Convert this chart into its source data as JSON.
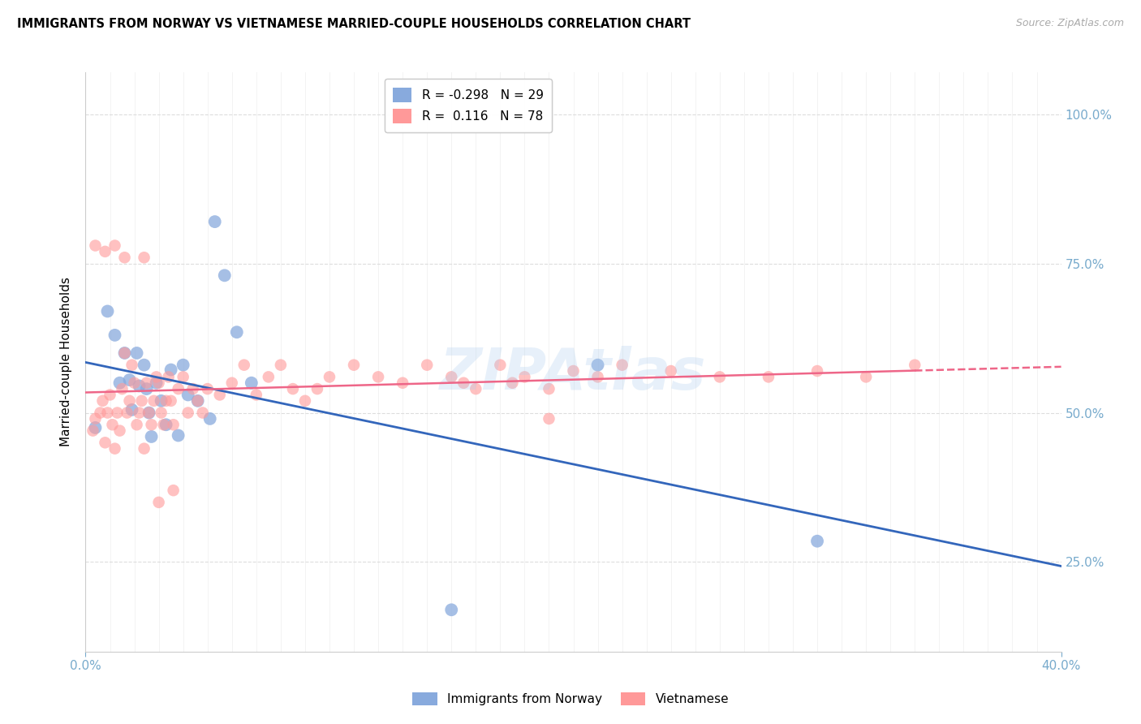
{
  "title": "IMMIGRANTS FROM NORWAY VS VIETNAMESE MARRIED-COUPLE HOUSEHOLDS CORRELATION CHART",
  "source": "Source: ZipAtlas.com",
  "ylabel": "Married-couple Households",
  "norway_R": -0.298,
  "norway_N": 29,
  "vietnamese_R": 0.116,
  "vietnamese_N": 78,
  "norway_color": "#88AADD",
  "vietnamese_color": "#FF9999",
  "norway_line_color": "#3366BB",
  "vietnamese_line_color": "#EE6688",
  "background_color": "#FFFFFF",
  "grid_color": "#DDDDDD",
  "axis_label_color": "#77AACC",
  "watermark_text": "ZIPAtlas",
  "xlim": [
    0.0,
    0.4
  ],
  "ylim": [
    0.1,
    1.07
  ],
  "x_minor_ticks": [
    0.01,
    0.02,
    0.03,
    0.04,
    0.05,
    0.06,
    0.07,
    0.08,
    0.09,
    0.1,
    0.11,
    0.12,
    0.13,
    0.14,
    0.15,
    0.16,
    0.17,
    0.18,
    0.19,
    0.2,
    0.21,
    0.22,
    0.23,
    0.24,
    0.25,
    0.26,
    0.27,
    0.28,
    0.29,
    0.3,
    0.31,
    0.32,
    0.33,
    0.34,
    0.35,
    0.36,
    0.37,
    0.38,
    0.39
  ],
  "y_ticks": [
    0.25,
    0.5,
    0.75,
    1.0
  ],
  "norway_x": [
    0.004,
    0.009,
    0.012,
    0.014,
    0.016,
    0.018,
    0.019,
    0.021,
    0.022,
    0.024,
    0.025,
    0.026,
    0.027,
    0.029,
    0.031,
    0.033,
    0.035,
    0.038,
    0.04,
    0.042,
    0.046,
    0.051,
    0.053,
    0.057,
    0.062,
    0.068,
    0.15,
    0.21,
    0.3
  ],
  "norway_y": [
    0.475,
    0.67,
    0.63,
    0.55,
    0.6,
    0.555,
    0.505,
    0.6,
    0.545,
    0.58,
    0.54,
    0.5,
    0.46,
    0.55,
    0.52,
    0.48,
    0.572,
    0.462,
    0.58,
    0.53,
    0.52,
    0.49,
    0.82,
    0.73,
    0.635,
    0.55,
    0.17,
    0.58,
    0.285
  ],
  "vietnamese_x": [
    0.003,
    0.004,
    0.006,
    0.007,
    0.008,
    0.009,
    0.01,
    0.011,
    0.012,
    0.013,
    0.014,
    0.015,
    0.016,
    0.017,
    0.018,
    0.019,
    0.02,
    0.021,
    0.022,
    0.023,
    0.024,
    0.025,
    0.026,
    0.027,
    0.028,
    0.029,
    0.03,
    0.031,
    0.032,
    0.033,
    0.034,
    0.035,
    0.036,
    0.038,
    0.04,
    0.042,
    0.044,
    0.046,
    0.048,
    0.05,
    0.055,
    0.06,
    0.065,
    0.07,
    0.075,
    0.08,
    0.085,
    0.09,
    0.095,
    0.1,
    0.11,
    0.12,
    0.13,
    0.14,
    0.15,
    0.155,
    0.16,
    0.17,
    0.175,
    0.18,
    0.19,
    0.2,
    0.21,
    0.22,
    0.24,
    0.26,
    0.28,
    0.3,
    0.32,
    0.34,
    0.004,
    0.008,
    0.012,
    0.016,
    0.024,
    0.03,
    0.036,
    0.19
  ],
  "vietnamese_y": [
    0.47,
    0.49,
    0.5,
    0.52,
    0.45,
    0.5,
    0.53,
    0.48,
    0.44,
    0.5,
    0.47,
    0.54,
    0.6,
    0.5,
    0.52,
    0.58,
    0.55,
    0.48,
    0.5,
    0.52,
    0.44,
    0.55,
    0.5,
    0.48,
    0.52,
    0.56,
    0.55,
    0.5,
    0.48,
    0.52,
    0.56,
    0.52,
    0.48,
    0.54,
    0.56,
    0.5,
    0.54,
    0.52,
    0.5,
    0.54,
    0.53,
    0.55,
    0.58,
    0.53,
    0.56,
    0.58,
    0.54,
    0.52,
    0.54,
    0.56,
    0.58,
    0.56,
    0.55,
    0.58,
    0.56,
    0.55,
    0.54,
    0.58,
    0.55,
    0.56,
    0.54,
    0.57,
    0.56,
    0.58,
    0.57,
    0.56,
    0.56,
    0.57,
    0.56,
    0.58,
    0.78,
    0.77,
    0.78,
    0.76,
    0.76,
    0.35,
    0.37,
    0.49
  ]
}
